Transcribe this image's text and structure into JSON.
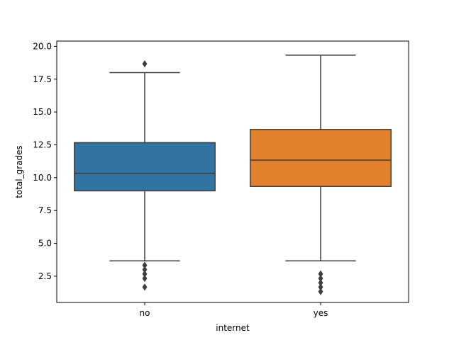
{
  "chart_data": {
    "type": "box",
    "title": "",
    "xlabel": "internet",
    "ylabel": "total_grades",
    "categories": [
      "no",
      "yes"
    ],
    "ylim": [
      0.5,
      20.4
    ],
    "yticks": [
      2.5,
      5.0,
      7.5,
      10.0,
      12.5,
      15.0,
      17.5,
      20.0
    ],
    "ytick_labels": [
      "2.5",
      "5.0",
      "7.5",
      "10.0",
      "12.5",
      "15.0",
      "17.5",
      "20.0"
    ],
    "grid": false,
    "boxes": [
      {
        "category": "no",
        "color": "#3274a1",
        "whisker_low": 3.67,
        "q1": 9.0,
        "median": 10.33,
        "q3": 12.67,
        "whisker_high": 18.0,
        "outliers": [
          18.67,
          3.33,
          3.0,
          2.67,
          2.33,
          1.67
        ]
      },
      {
        "category": "yes",
        "color": "#e1812c",
        "whisker_low": 3.67,
        "q1": 9.33,
        "median": 11.33,
        "q3": 13.67,
        "whisker_high": 19.33,
        "outliers": [
          2.67,
          2.33,
          2.0,
          1.67,
          1.33
        ]
      }
    ],
    "line_color": "#3f3f3f"
  }
}
